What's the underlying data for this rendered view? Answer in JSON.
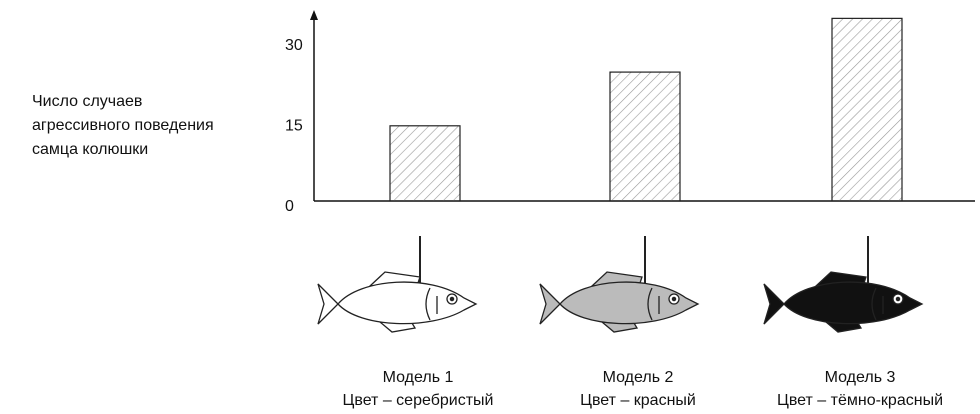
{
  "chart_data": {
    "type": "bar",
    "y_label_lines": [
      "Число случаев",
      "агрессивного поведения",
      "самца колюшки"
    ],
    "categories": [
      "Модель 1",
      "Модель 2",
      "Модель 3"
    ],
    "category_notes": [
      "Цвет – серебристый",
      "Цвет – красный",
      "Цвет – тёмно-красный"
    ],
    "values": [
      14,
      24,
      34
    ],
    "ylim": [
      0,
      35
    ],
    "yticks": [
      0,
      15,
      30
    ],
    "grid": false
  }
}
